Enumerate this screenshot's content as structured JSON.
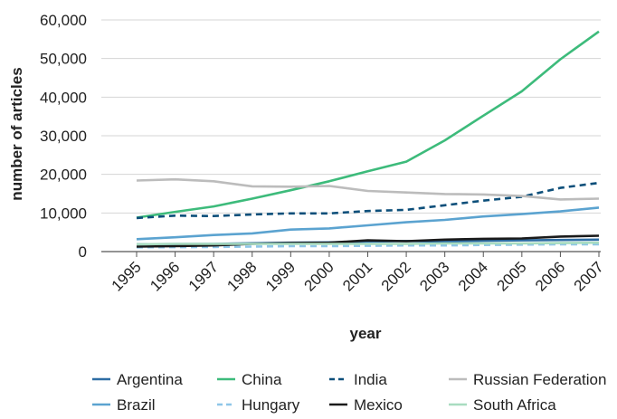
{
  "chart_data": {
    "type": "line",
    "title": "",
    "xlabel": "year",
    "ylabel": "number of articles",
    "x": [
      "1995",
      "1996",
      "1997",
      "1998",
      "1999",
      "2000",
      "2001",
      "2002",
      "2003",
      "2004",
      "2005",
      "2006",
      "2007"
    ],
    "ylim": [
      0,
      60000
    ],
    "yticks": [
      0,
      10000,
      20000,
      30000,
      40000,
      50000,
      60000
    ],
    "ytick_labels": [
      "0",
      "10,000",
      "20,000",
      "30,000",
      "40,000",
      "50,000",
      "60,000"
    ],
    "grid": "horizontal",
    "legend_position": "bottom",
    "series": [
      {
        "name": "Argentina",
        "color": "#2e6da4",
        "dash": "solid",
        "values": [
          1900,
          1950,
          2000,
          2150,
          2300,
          2400,
          2600,
          2750,
          2600,
          2800,
          2900,
          3000,
          3100
        ]
      },
      {
        "name": "China",
        "color": "#3dbb7b",
        "dash": "solid",
        "values": [
          8800,
          10300,
          11700,
          13700,
          15900,
          18200,
          20800,
          23300,
          28800,
          35200,
          41500,
          49800,
          57000
        ]
      },
      {
        "name": "India",
        "color": "#0d4f7a",
        "dash": "dashed",
        "values": [
          8700,
          9300,
          9200,
          9600,
          9900,
          9900,
          10500,
          10800,
          12000,
          13200,
          14200,
          16500,
          17800
        ]
      },
      {
        "name": "Russian Federation",
        "color": "#bcbcbc",
        "dash": "solid",
        "values": [
          18400,
          18700,
          18200,
          16900,
          16800,
          17000,
          15700,
          15300,
          14900,
          14800,
          14400,
          13500,
          13700
        ]
      },
      {
        "name": "Brazil",
        "color": "#5ba3d0",
        "dash": "solid",
        "values": [
          3200,
          3700,
          4300,
          4700,
          5700,
          6000,
          6800,
          7600,
          8200,
          9100,
          9700,
          10400,
          11400
        ]
      },
      {
        "name": "Hungary",
        "color": "#8ec6e8",
        "dash": "dashed",
        "values": [
          1100,
          1150,
          1200,
          1300,
          1400,
          1400,
          1500,
          1600,
          1600,
          1700,
          1800,
          1900,
          1900
        ]
      },
      {
        "name": "Mexico",
        "color": "#1a1a1a",
        "dash": "solid",
        "values": [
          1300,
          1400,
          1600,
          2000,
          2200,
          2300,
          2900,
          2700,
          3100,
          3300,
          3400,
          3900,
          4100
        ]
      },
      {
        "name": "South Africa",
        "color": "#a8dcc0",
        "dash": "solid",
        "values": [
          1900,
          2000,
          2000,
          2000,
          2000,
          2000,
          2000,
          2000,
          2100,
          2100,
          2100,
          2200,
          2300
        ]
      }
    ],
    "legend_order": [
      [
        "Argentina",
        "China",
        "India",
        "Russian Federation"
      ],
      [
        "Brazil",
        "Hungary",
        "Mexico",
        "South Africa"
      ]
    ]
  }
}
